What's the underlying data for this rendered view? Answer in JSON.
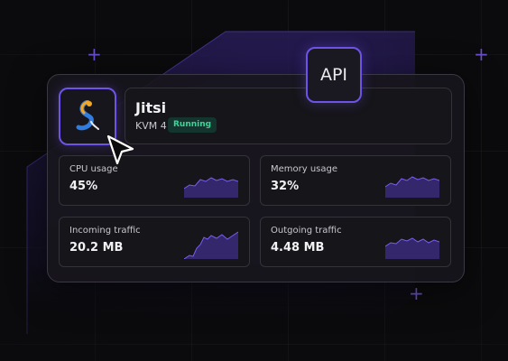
{
  "server": {
    "name": "Jitsi",
    "plan": "KVM 4",
    "status": "Running",
    "status_color": "#3fd39a"
  },
  "api_badge": {
    "label": "API"
  },
  "metrics": {
    "cpu": {
      "label": "CPU usage",
      "value": "45%"
    },
    "memory": {
      "label": "Memory usage",
      "value": "32%"
    },
    "incoming": {
      "label": "Incoming traffic",
      "value": "20.2 MB"
    },
    "outgoing": {
      "label": "Outgoing traffic",
      "value": "4.48 MB"
    }
  },
  "colors": {
    "accent": "#6e54e6",
    "background": "#0b0b0d",
    "card": "#161519",
    "sparkline": "#7b5cf0"
  },
  "icons": {
    "app_logo": "jitsi-logo-icon",
    "cursor": "mouse-pointer-icon"
  }
}
